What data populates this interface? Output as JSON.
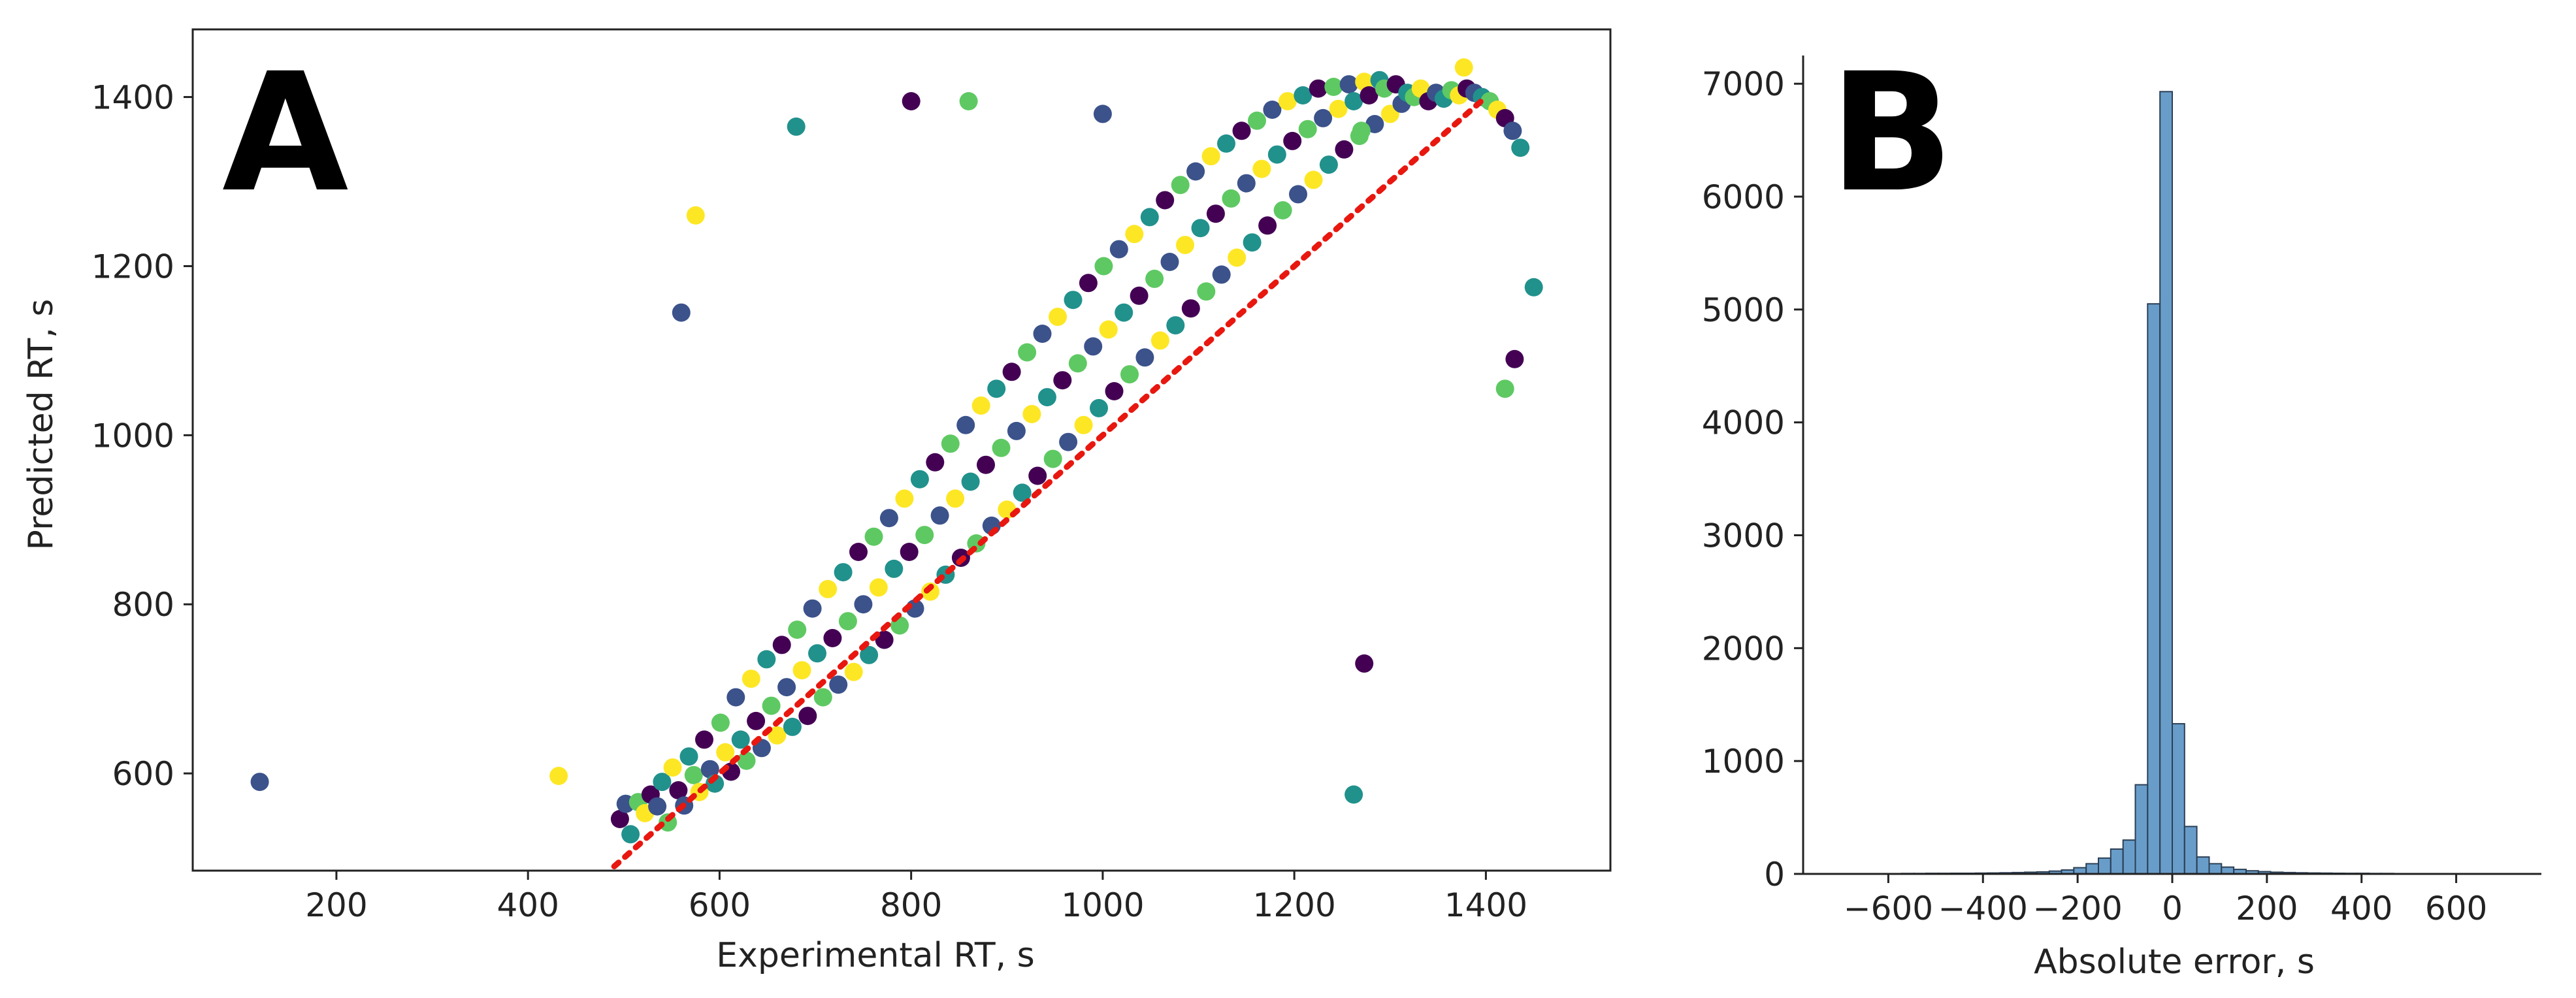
{
  "chart_data": [
    {
      "type": "scatter",
      "panel_label": "A",
      "xlabel": "Experimental RT, s",
      "ylabel": "Predicted RT, s",
      "xlim": [
        50,
        1530
      ],
      "ylim": [
        485,
        1480
      ],
      "xticks": [
        200,
        400,
        600,
        800,
        1000,
        1200,
        1400
      ],
      "yticks": [
        600,
        800,
        1000,
        1200,
        1400
      ],
      "grid": false,
      "colormap": [
        "#440154",
        "#3b528b",
        "#21918c",
        "#5ec962",
        "#fde725"
      ],
      "outliers": [
        [
          120,
          590
        ],
        [
          432,
          597
        ],
        [
          1262,
          575
        ],
        [
          1273,
          730
        ],
        [
          1270,
          1360
        ],
        [
          560,
          1145
        ],
        [
          575,
          1260
        ],
        [
          680,
          1365
        ],
        [
          800,
          1395
        ],
        [
          860,
          1395
        ],
        [
          1000,
          1380
        ],
        [
          1377,
          1435
        ],
        [
          1450,
          1175
        ],
        [
          1430,
          1090
        ],
        [
          1420,
          1055
        ]
      ],
      "points": [
        [
          496,
          546
        ],
        [
          502,
          564
        ],
        [
          507,
          528
        ],
        [
          515,
          566
        ],
        [
          522,
          553
        ],
        [
          528,
          575
        ],
        [
          535,
          561
        ],
        [
          540,
          590
        ],
        [
          546,
          542
        ],
        [
          551,
          607
        ],
        [
          557,
          580
        ],
        [
          563,
          562
        ],
        [
          568,
          620
        ],
        [
          573,
          598
        ],
        [
          579,
          578
        ],
        [
          584,
          640
        ],
        [
          590,
          605
        ],
        [
          595,
          588
        ],
        [
          601,
          660
        ],
        [
          606,
          625
        ],
        [
          612,
          602
        ],
        [
          617,
          690
        ],
        [
          622,
          640
        ],
        [
          628,
          615
        ],
        [
          633,
          712
        ],
        [
          638,
          662
        ],
        [
          644,
          630
        ],
        [
          649,
          735
        ],
        [
          654,
          680
        ],
        [
          660,
          645
        ],
        [
          665,
          752
        ],
        [
          670,
          702
        ],
        [
          676,
          655
        ],
        [
          681,
          770
        ],
        [
          686,
          722
        ],
        [
          692,
          668
        ],
        [
          697,
          795
        ],
        [
          702,
          742
        ],
        [
          708,
          690
        ],
        [
          713,
          818
        ],
        [
          718,
          760
        ],
        [
          724,
          705
        ],
        [
          729,
          838
        ],
        [
          734,
          780
        ],
        [
          740,
          720
        ],
        [
          745,
          862
        ],
        [
          750,
          800
        ],
        [
          756,
          740
        ],
        [
          761,
          880
        ],
        [
          766,
          820
        ],
        [
          772,
          758
        ],
        [
          777,
          902
        ],
        [
          782,
          842
        ],
        [
          788,
          775
        ],
        [
          793,
          925
        ],
        [
          798,
          862
        ],
        [
          804,
          795
        ],
        [
          809,
          948
        ],
        [
          814,
          882
        ],
        [
          820,
          815
        ],
        [
          825,
          968
        ],
        [
          830,
          905
        ],
        [
          836,
          835
        ],
        [
          841,
          990
        ],
        [
          846,
          925
        ],
        [
          852,
          855
        ],
        [
          857,
          1012
        ],
        [
          862,
          945
        ],
        [
          868,
          872
        ],
        [
          873,
          1035
        ],
        [
          878,
          965
        ],
        [
          884,
          893
        ],
        [
          889,
          1055
        ],
        [
          894,
          985
        ],
        [
          900,
          912
        ],
        [
          905,
          1075
        ],
        [
          910,
          1005
        ],
        [
          916,
          932
        ],
        [
          921,
          1098
        ],
        [
          926,
          1025
        ],
        [
          932,
          952
        ],
        [
          937,
          1120
        ],
        [
          942,
          1045
        ],
        [
          948,
          972
        ],
        [
          953,
          1140
        ],
        [
          958,
          1065
        ],
        [
          964,
          992
        ],
        [
          969,
          1160
        ],
        [
          974,
          1085
        ],
        [
          980,
          1012
        ],
        [
          985,
          1180
        ],
        [
          990,
          1105
        ],
        [
          996,
          1032
        ],
        [
          1001,
          1200
        ],
        [
          1006,
          1125
        ],
        [
          1012,
          1052
        ],
        [
          1017,
          1220
        ],
        [
          1022,
          1145
        ],
        [
          1028,
          1072
        ],
        [
          1033,
          1238
        ],
        [
          1038,
          1165
        ],
        [
          1044,
          1092
        ],
        [
          1049,
          1258
        ],
        [
          1054,
          1185
        ],
        [
          1060,
          1112
        ],
        [
          1065,
          1278
        ],
        [
          1070,
          1205
        ],
        [
          1076,
          1130
        ],
        [
          1081,
          1296
        ],
        [
          1086,
          1225
        ],
        [
          1092,
          1150
        ],
        [
          1097,
          1312
        ],
        [
          1102,
          1245
        ],
        [
          1108,
          1170
        ],
        [
          1113,
          1330
        ],
        [
          1118,
          1262
        ],
        [
          1124,
          1190
        ],
        [
          1129,
          1345
        ],
        [
          1134,
          1280
        ],
        [
          1140,
          1210
        ],
        [
          1145,
          1360
        ],
        [
          1150,
          1298
        ],
        [
          1156,
          1228
        ],
        [
          1161,
          1372
        ],
        [
          1166,
          1315
        ],
        [
          1172,
          1248
        ],
        [
          1177,
          1385
        ],
        [
          1182,
          1332
        ],
        [
          1188,
          1266
        ],
        [
          1193,
          1395
        ],
        [
          1198,
          1348
        ],
        [
          1204,
          1285
        ],
        [
          1209,
          1402
        ],
        [
          1214,
          1362
        ],
        [
          1220,
          1302
        ],
        [
          1225,
          1410
        ],
        [
          1230,
          1375
        ],
        [
          1236,
          1320
        ],
        [
          1241,
          1412
        ],
        [
          1246,
          1386
        ],
        [
          1252,
          1338
        ],
        [
          1257,
          1415
        ],
        [
          1262,
          1395
        ],
        [
          1268,
          1354
        ],
        [
          1273,
          1418
        ],
        [
          1278,
          1402
        ],
        [
          1284,
          1368
        ],
        [
          1289,
          1420
        ],
        [
          1294,
          1410
        ],
        [
          1300,
          1380
        ],
        [
          1306,
          1415
        ],
        [
          1312,
          1392
        ],
        [
          1318,
          1405
        ],
        [
          1325,
          1400
        ],
        [
          1332,
          1410
        ],
        [
          1340,
          1395
        ],
        [
          1348,
          1405
        ],
        [
          1356,
          1398
        ],
        [
          1364,
          1408
        ],
        [
          1372,
          1402
        ],
        [
          1380,
          1410
        ],
        [
          1388,
          1405
        ],
        [
          1396,
          1400
        ],
        [
          1404,
          1395
        ],
        [
          1412,
          1385
        ],
        [
          1420,
          1375
        ],
        [
          1428,
          1360
        ],
        [
          1436,
          1340
        ]
      ],
      "reference_line": {
        "x": [
          490,
          1400
        ],
        "y": [
          490,
          1400
        ],
        "color": "#e8170f",
        "style": "dotted"
      }
    },
    {
      "type": "bar",
      "panel_label": "B",
      "xlabel": "Absolute error, s",
      "ylabel": "",
      "xlim": [
        -780,
        780
      ],
      "ylim": [
        0,
        7250
      ],
      "xticks": [
        -600,
        -400,
        -200,
        0,
        200,
        400,
        600
      ],
      "yticks": [
        0,
        1000,
        2000,
        3000,
        4000,
        5000,
        6000,
        7000
      ],
      "grid": false,
      "bar_color": "#4f8cc0",
      "bin_width": 26,
      "bin_starts": [
        -702,
        -676,
        -650,
        -624,
        -598,
        -572,
        -546,
        -520,
        -494,
        -468,
        -442,
        -416,
        -390,
        -364,
        -338,
        -312,
        -286,
        -260,
        -234,
        -208,
        -182,
        -156,
        -130,
        -104,
        -78,
        -52,
        -26,
        0,
        26,
        52,
        78,
        104,
        130,
        156,
        182,
        208,
        234,
        260,
        286,
        312,
        338,
        364,
        390,
        416,
        442,
        468,
        494,
        520,
        546,
        572,
        598,
        624,
        650
      ],
      "counts": [
        2,
        2,
        3,
        3,
        3,
        4,
        4,
        5,
        5,
        6,
        6,
        7,
        8,
        10,
        12,
        15,
        18,
        25,
        35,
        55,
        90,
        140,
        220,
        300,
        790,
        5050,
        6930,
        1330,
        420,
        150,
        90,
        60,
        40,
        28,
        20,
        15,
        12,
        10,
        8,
        7,
        6,
        5,
        5,
        4,
        4,
        3,
        3,
        3,
        2,
        2,
        2,
        2,
        1
      ]
    }
  ]
}
